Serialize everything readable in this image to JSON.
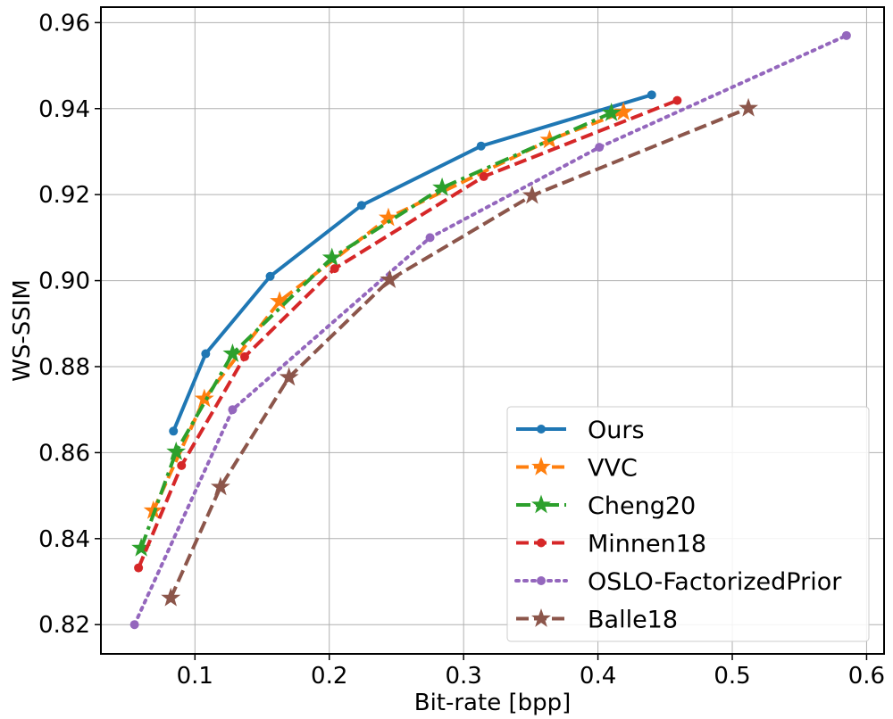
{
  "chart_data": {
    "type": "line",
    "title": "",
    "xlabel": "Bit-rate [bpp]",
    "ylabel": "WS-SSIM",
    "xlim": [
      0.03,
      0.613
    ],
    "ylim": [
      0.8132,
      0.9636
    ],
    "xticks": [
      0.1,
      0.2,
      0.3,
      0.4,
      0.5,
      0.6
    ],
    "xtick_labels": [
      "0.1",
      "0.2",
      "0.3",
      "0.4",
      "0.5",
      "0.6"
    ],
    "yticks": [
      0.82,
      0.84,
      0.86,
      0.88,
      0.9,
      0.92,
      0.94,
      0.96
    ],
    "ytick_labels": [
      "0.82",
      "0.84",
      "0.86",
      "0.88",
      "0.90",
      "0.92",
      "0.94",
      "0.96"
    ],
    "grid": true,
    "legend_position": "lower-right",
    "series": [
      {
        "name": "Ours",
        "color": "#1f77b4",
        "linestyle": "solid",
        "marker": "circle",
        "x": [
          0.084,
          0.108,
          0.156,
          0.224,
          0.313,
          0.44
        ],
        "y": [
          0.865,
          0.883,
          0.901,
          0.9175,
          0.9313,
          0.9432
        ]
      },
      {
        "name": "VVC",
        "color": "#ff7f0e",
        "linestyle": "dashed",
        "marker": "star",
        "x": [
          0.069,
          0.107,
          0.163,
          0.244,
          0.364,
          0.419
        ],
        "y": [
          0.8465,
          0.8725,
          0.8952,
          0.9146,
          0.9327,
          0.9392
        ]
      },
      {
        "name": "Cheng20",
        "color": "#2ca02c",
        "linestyle": "dashdot",
        "marker": "star",
        "x": [
          0.06,
          0.086,
          0.128,
          0.202,
          0.284,
          0.41
        ],
        "y": [
          0.8378,
          0.8602,
          0.883,
          0.9053,
          0.9216,
          0.939
        ]
      },
      {
        "name": "Minnen18",
        "color": "#d62728",
        "linestyle": "dashed",
        "marker": "circle",
        "x": [
          0.058,
          0.09,
          0.137,
          0.204,
          0.315,
          0.459
        ],
        "y": [
          0.8332,
          0.857,
          0.8823,
          0.9028,
          0.9242,
          0.9419
        ]
      },
      {
        "name": "OSLO-FactorizedPrior",
        "color": "#9467bd",
        "linestyle": "dotted",
        "marker": "circle",
        "x": [
          0.055,
          0.128,
          0.275,
          0.401,
          0.585
        ],
        "y": [
          0.82,
          0.87,
          0.91,
          0.931,
          0.957
        ]
      },
      {
        "name": "Balle18",
        "color": "#8c564b",
        "linestyle": "dashed",
        "marker": "star",
        "x": [
          0.082,
          0.119,
          0.17,
          0.245,
          0.351,
          0.512
        ],
        "y": [
          0.8262,
          0.852,
          0.8775,
          0.9002,
          0.9198,
          0.9401
        ]
      }
    ]
  }
}
